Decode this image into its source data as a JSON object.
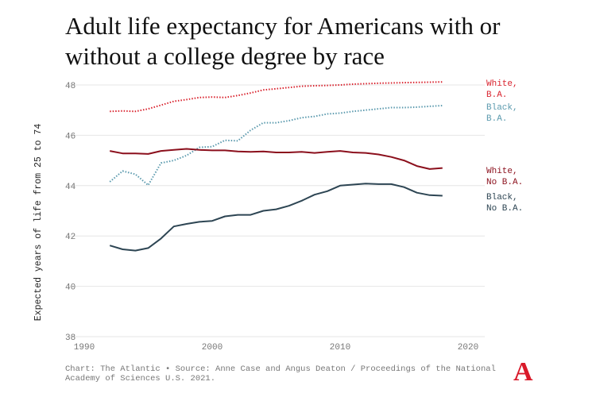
{
  "chart_data": {
    "type": "line",
    "title": "Adult life expectancy for Americans with or without a college degree by race",
    "ylabel": "Expected years of life from 25 to 74",
    "xlabel": "",
    "xlim": [
      1989,
      2021.5
    ],
    "ylim": [
      38,
      48
    ],
    "xticks": [
      1990,
      2000,
      2010,
      2020
    ],
    "yticks": [
      38,
      40,
      42,
      44,
      46,
      48
    ],
    "grid": true,
    "x": [
      1992,
      1993,
      1994,
      1995,
      1996,
      1997,
      1998,
      1999,
      2000,
      2001,
      2002,
      2003,
      2004,
      2005,
      2006,
      2007,
      2008,
      2009,
      2010,
      2011,
      2012,
      2013,
      2014,
      2015,
      2016,
      2017,
      2018
    ],
    "series": [
      {
        "name": "White, B.A.",
        "label_lines": [
          "White,",
          "B.A."
        ],
        "color": "#d9232e",
        "style": "dotted",
        "values": [
          46.95,
          46.97,
          46.95,
          47.05,
          47.2,
          47.35,
          47.42,
          47.5,
          47.52,
          47.5,
          47.58,
          47.68,
          47.8,
          47.85,
          47.9,
          47.95,
          47.97,
          47.98,
          48.0,
          48.03,
          48.05,
          48.07,
          48.08,
          48.09,
          48.1,
          48.11,
          48.12
        ]
      },
      {
        "name": "Black, B.A.",
        "label_lines": [
          "Black,",
          "B.A."
        ],
        "color": "#5b9aae",
        "style": "dotted",
        "values": [
          44.15,
          44.58,
          44.45,
          44.02,
          44.9,
          45.0,
          45.2,
          45.52,
          45.55,
          45.8,
          45.78,
          46.2,
          46.5,
          46.5,
          46.58,
          46.7,
          46.75,
          46.85,
          46.88,
          46.95,
          47.0,
          47.05,
          47.1,
          47.1,
          47.12,
          47.15,
          47.18
        ]
      },
      {
        "name": "White, No B.A.",
        "label_lines": [
          "White,",
          "No B.A."
        ],
        "color": "#8b0f1c",
        "style": "solid",
        "values": [
          45.38,
          45.28,
          45.28,
          45.26,
          45.38,
          45.42,
          45.46,
          45.42,
          45.4,
          45.4,
          45.36,
          45.34,
          45.36,
          45.32,
          45.32,
          45.34,
          45.3,
          45.34,
          45.38,
          45.32,
          45.3,
          45.24,
          45.14,
          45.0,
          44.78,
          44.66,
          44.7
        ]
      },
      {
        "name": "Black, No B.A.",
        "label_lines": [
          "Black,",
          "No B.A."
        ],
        "color": "#2d4553",
        "style": "solid",
        "values": [
          41.62,
          41.47,
          41.42,
          41.52,
          41.9,
          42.38,
          42.48,
          42.56,
          42.6,
          42.78,
          42.84,
          42.84,
          43.0,
          43.06,
          43.2,
          43.4,
          43.64,
          43.78,
          44.0,
          44.04,
          44.08,
          44.06,
          44.06,
          43.94,
          43.72,
          43.62,
          43.6
        ]
      }
    ],
    "footer": "Chart: The Atlantic • Source: Anne Case and Angus Deaton / Proceedings of the National Academy of Sciences U.S. 2021.",
    "logo": "A",
    "logo_color": "#d91a2a"
  }
}
